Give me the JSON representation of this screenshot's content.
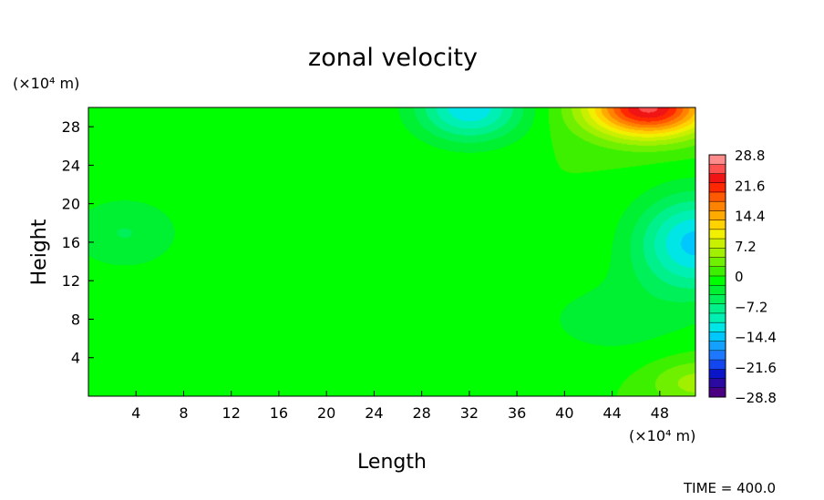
{
  "chart_data": {
    "type": "heatmap",
    "title": "zonal velocity",
    "xlabel": "Length",
    "ylabel": "Height",
    "x_unit": "(×10⁴ m)",
    "y_unit": "(×10⁴ m)",
    "footer": "TIME = 400.0",
    "xlim": [
      0,
      51
    ],
    "ylim": [
      0,
      30
    ],
    "x_ticks": [
      4,
      8,
      12,
      16,
      20,
      24,
      28,
      32,
      36,
      40,
      44,
      48
    ],
    "y_ticks": [
      4,
      8,
      12,
      16,
      20,
      24,
      28
    ],
    "colorbar": {
      "min": -28.8,
      "max": 28.8,
      "tick_labels": [
        "28.8",
        "21.6",
        "14.4",
        "7.2",
        "0",
        "−7.2",
        "−14.4",
        "−21.6",
        "−28.8"
      ],
      "tick_values": [
        28.8,
        21.6,
        14.4,
        7.2,
        0,
        -7.2,
        -14.4,
        -21.6,
        -28.8
      ],
      "colors": [
        "#4b0082",
        "#2a0aa0",
        "#0a14c8",
        "#1446f0",
        "#1e78ff",
        "#14a0ff",
        "#00c8ff",
        "#00e6e6",
        "#00f0b4",
        "#00f08c",
        "#00f05a",
        "#00f032",
        "#00ff00",
        "#3cf000",
        "#6ef000",
        "#a0f000",
        "#c8f000",
        "#f0f000",
        "#ffd200",
        "#ffaa00",
        "#ff8200",
        "#ff5a00",
        "#ff2800",
        "#f01414",
        "#ff5050",
        "#ff8c8c"
      ]
    },
    "features": [
      {
        "x": 47,
        "y": 30,
        "sx": 5,
        "sy": 3,
        "value": 25
      },
      {
        "x": 32,
        "y": 30,
        "sx": 4.5,
        "sy": 3.5,
        "value": -13
      },
      {
        "x": 51,
        "y": 16,
        "sx": 5,
        "sy": 5,
        "value": -14
      },
      {
        "x": 3,
        "y": 17,
        "sx": 5,
        "sy": 4,
        "value": -4.5
      },
      {
        "x": 51,
        "y": 1.5,
        "sx": 4,
        "sy": 2.5,
        "value": 5.5
      },
      {
        "x": 44,
        "y": 8,
        "sx": 8,
        "sy": 5,
        "value": -3
      }
    ]
  }
}
